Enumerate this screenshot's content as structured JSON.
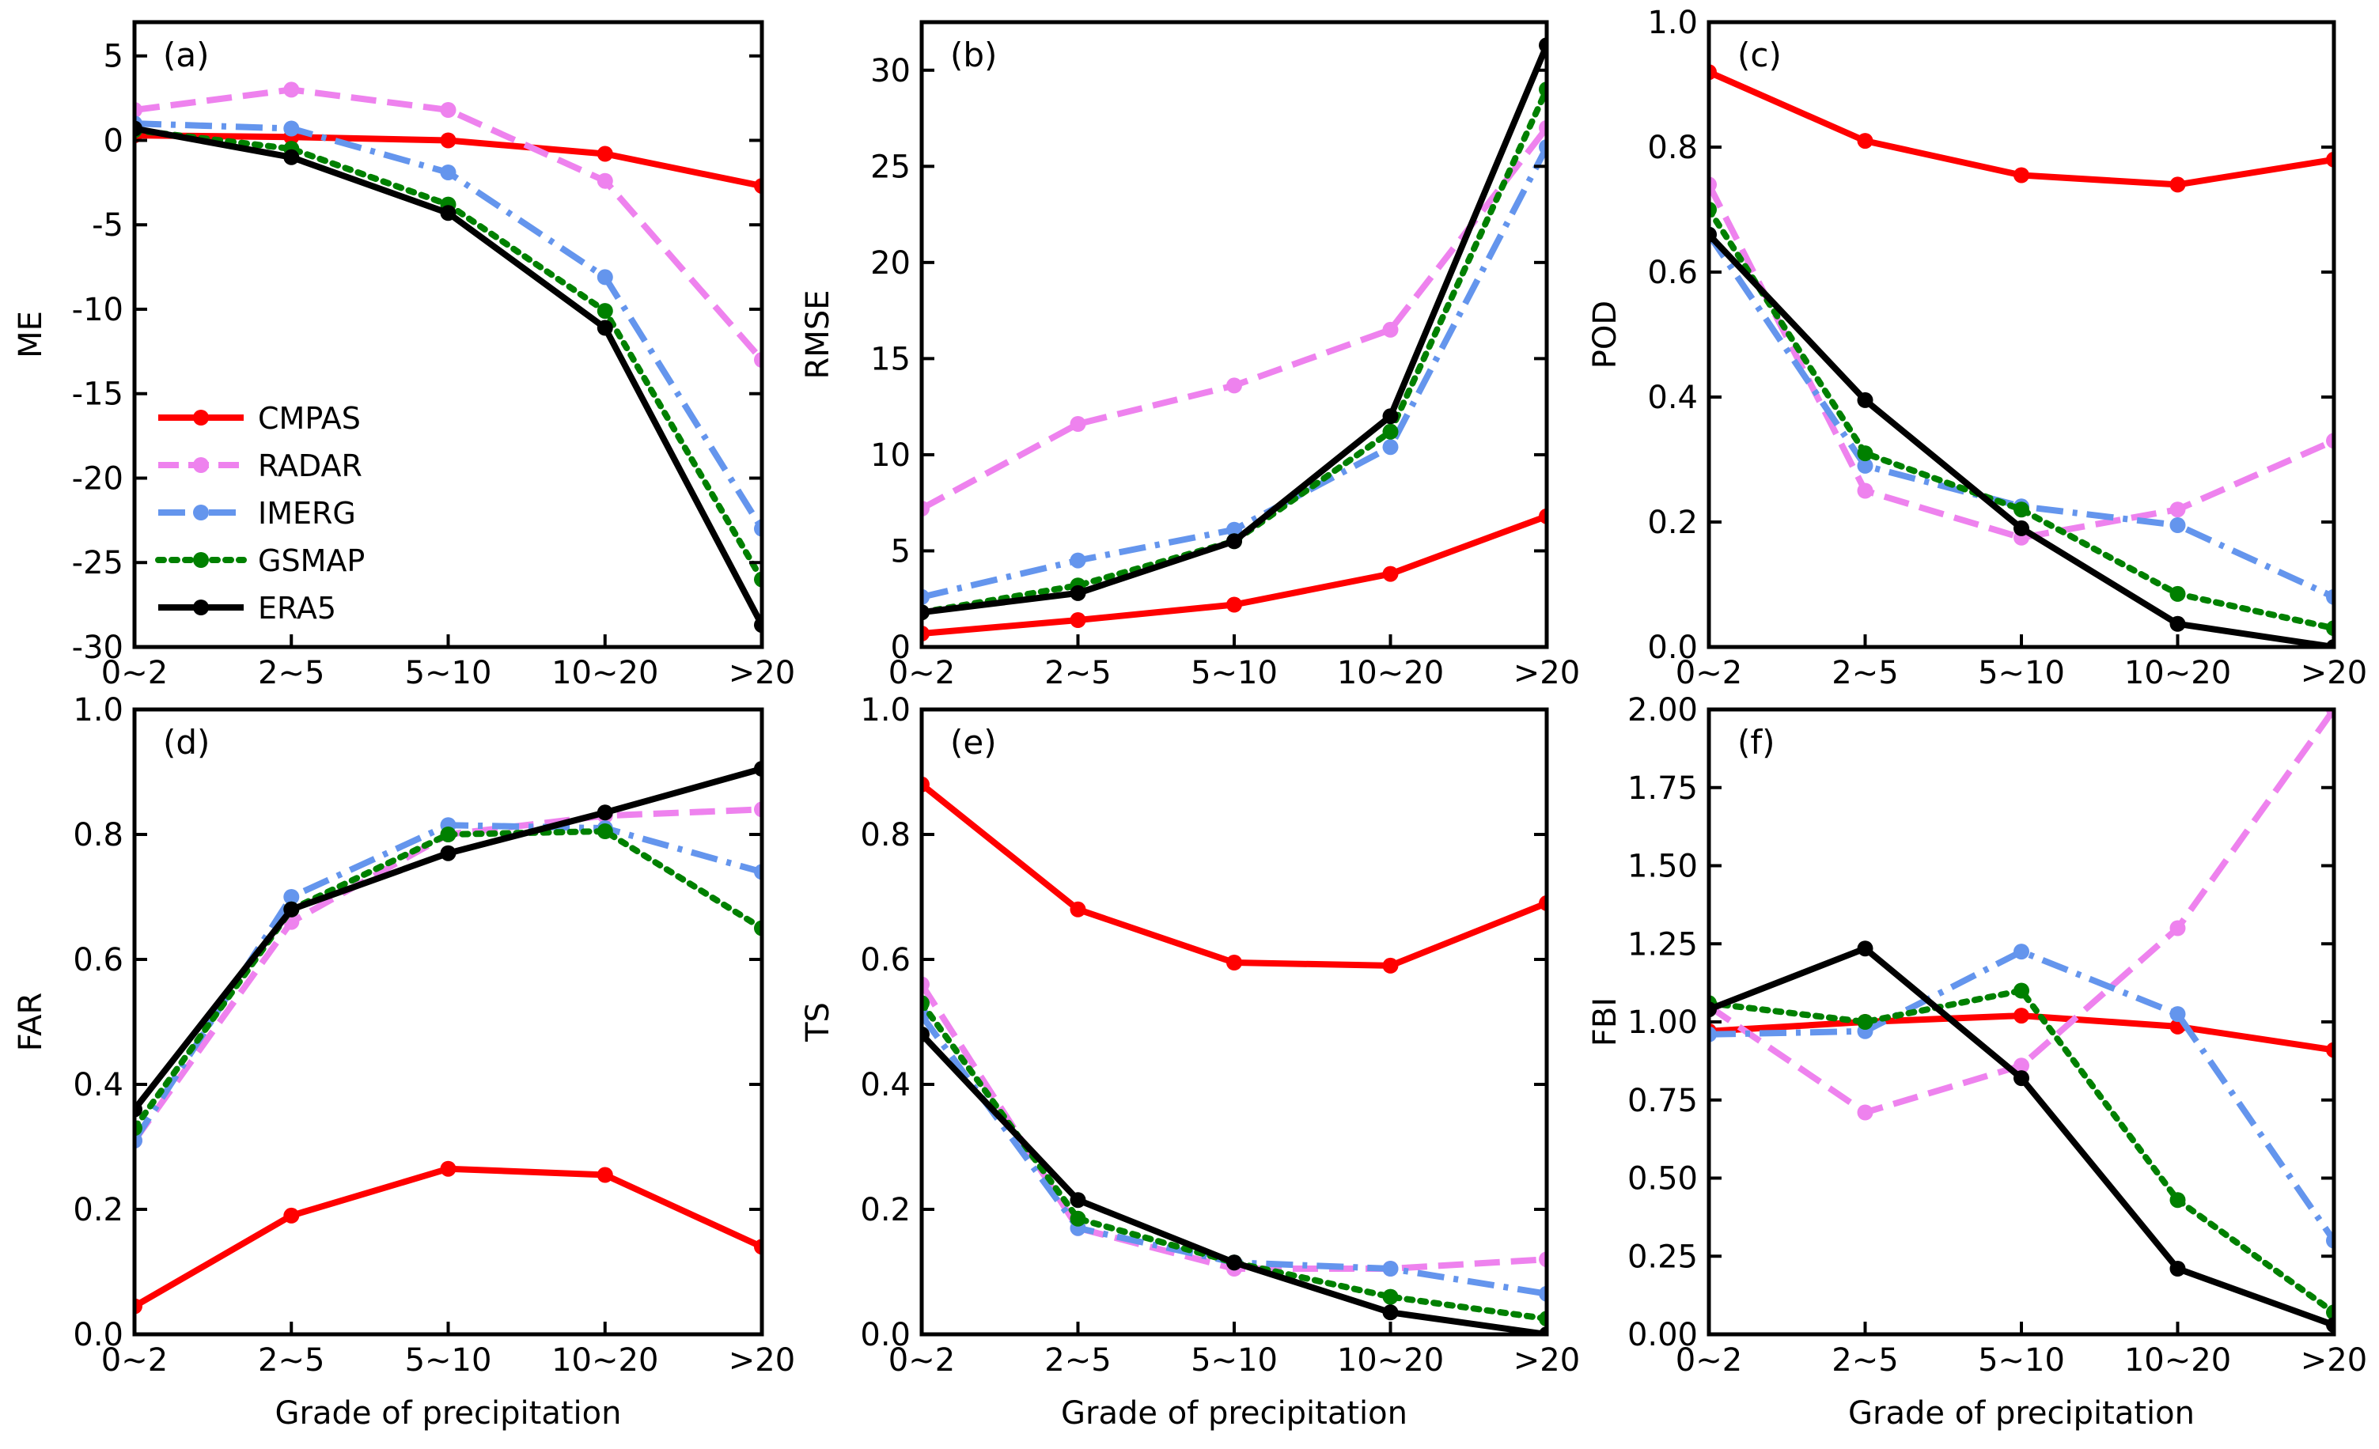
{
  "figure": {
    "xlabel": "Grade of precipitation",
    "legend_location": "left-middle of panel (a)"
  },
  "series_styles": [
    {
      "name": "CMPAS",
      "color": "#ff0000",
      "dash": "solid"
    },
    {
      "name": "RADAR",
      "color": "#ee82ee",
      "dash": "dashed"
    },
    {
      "name": "IMERG",
      "color": "#6495ed",
      "dash": "dashdot"
    },
    {
      "name": "GSMAP",
      "color": "#008000",
      "dash": "dotted"
    },
    {
      "name": "ERA5",
      "color": "#000000",
      "dash": "solid"
    }
  ],
  "chart_data": [
    {
      "type": "line",
      "panel_label": "(a)",
      "ylabel": "ME",
      "categories": [
        "0~2",
        "2~5",
        "5~10",
        "10~20",
        ">20"
      ],
      "ylim": [
        -30,
        7
      ],
      "yticks": [
        5,
        0,
        -5,
        -10,
        -15,
        -20,
        -25,
        -30
      ],
      "ytick_labels": [
        "5",
        "0",
        "-5",
        "-10",
        "-15",
        "-20",
        "-25",
        "-30"
      ],
      "show_legend": true,
      "series": [
        {
          "name": "CMPAS",
          "values": [
            0.3,
            0.2,
            0.0,
            -0.8,
            -2.7
          ]
        },
        {
          "name": "RADAR",
          "values": [
            1.8,
            3.0,
            1.8,
            -2.4,
            -13.0
          ]
        },
        {
          "name": "IMERG",
          "values": [
            1.0,
            0.7,
            -1.9,
            -8.1,
            -23.0
          ]
        },
        {
          "name": "GSMAP",
          "values": [
            0.6,
            -0.5,
            -3.8,
            -10.1,
            -26.0
          ]
        },
        {
          "name": "ERA5",
          "values": [
            0.7,
            -1.0,
            -4.3,
            -11.1,
            -28.7
          ]
        }
      ]
    },
    {
      "type": "line",
      "panel_label": "(b)",
      "ylabel": "RMSE",
      "categories": [
        "0~2",
        "2~5",
        "5~10",
        "10~20",
        ">20"
      ],
      "ylim": [
        0,
        32.5
      ],
      "yticks": [
        0,
        5,
        10,
        15,
        20,
        25,
        30
      ],
      "ytick_labels": [
        "0",
        "5",
        "10",
        "15",
        "20",
        "25",
        "30"
      ],
      "show_legend": false,
      "series": [
        {
          "name": "CMPAS",
          "values": [
            0.7,
            1.4,
            2.2,
            3.8,
            6.8
          ]
        },
        {
          "name": "RADAR",
          "values": [
            7.2,
            11.6,
            13.6,
            16.5,
            27.0
          ]
        },
        {
          "name": "IMERG",
          "values": [
            2.6,
            4.5,
            6.1,
            10.4,
            26.0
          ]
        },
        {
          "name": "GSMAP",
          "values": [
            1.8,
            3.2,
            5.5,
            11.2,
            29.0
          ]
        },
        {
          "name": "ERA5",
          "values": [
            1.8,
            2.8,
            5.5,
            12.0,
            31.3
          ]
        }
      ]
    },
    {
      "type": "line",
      "panel_label": "(c)",
      "ylabel": "POD",
      "categories": [
        "0~2",
        "2~5",
        "5~10",
        "10~20",
        ">20"
      ],
      "ylim": [
        0,
        1.0
      ],
      "yticks": [
        0,
        0.2,
        0.4,
        0.6,
        0.8,
        1.0
      ],
      "ytick_labels": [
        "0.0",
        "0.2",
        "0.4",
        "0.6",
        "0.8",
        "1.0"
      ],
      "show_legend": false,
      "series": [
        {
          "name": "CMPAS",
          "values": [
            0.92,
            0.81,
            0.755,
            0.74,
            0.78
          ]
        },
        {
          "name": "RADAR",
          "values": [
            0.74,
            0.25,
            0.175,
            0.22,
            0.33
          ]
        },
        {
          "name": "IMERG",
          "values": [
            0.66,
            0.29,
            0.225,
            0.195,
            0.08
          ]
        },
        {
          "name": "GSMAP",
          "values": [
            0.7,
            0.31,
            0.22,
            0.085,
            0.03
          ]
        },
        {
          "name": "ERA5",
          "values": [
            0.66,
            0.395,
            0.19,
            0.037,
            0.0
          ]
        }
      ]
    },
    {
      "type": "line",
      "panel_label": "(d)",
      "ylabel": "FAR",
      "categories": [
        "0~2",
        "2~5",
        "5~10",
        "10~20",
        ">20"
      ],
      "ylim": [
        0,
        1.0
      ],
      "yticks": [
        0,
        0.2,
        0.4,
        0.6,
        0.8,
        1.0
      ],
      "ytick_labels": [
        "0.0",
        "0.2",
        "0.4",
        "0.6",
        "0.8",
        "1.0"
      ],
      "show_legend": false,
      "series": [
        {
          "name": "CMPAS",
          "values": [
            0.045,
            0.19,
            0.265,
            0.255,
            0.14
          ]
        },
        {
          "name": "RADAR",
          "values": [
            0.31,
            0.66,
            0.8,
            0.83,
            0.84
          ]
        },
        {
          "name": "IMERG",
          "values": [
            0.31,
            0.7,
            0.815,
            0.81,
            0.74
          ]
        },
        {
          "name": "GSMAP",
          "values": [
            0.33,
            0.68,
            0.8,
            0.805,
            0.65
          ]
        },
        {
          "name": "ERA5",
          "values": [
            0.36,
            0.68,
            0.77,
            0.835,
            0.905
          ]
        }
      ]
    },
    {
      "type": "line",
      "panel_label": "(e)",
      "ylabel": "TS",
      "categories": [
        "0~2",
        "2~5",
        "5~10",
        "10~20",
        ">20"
      ],
      "ylim": [
        0,
        1.0
      ],
      "yticks": [
        0,
        0.2,
        0.4,
        0.6,
        0.8,
        1.0
      ],
      "ytick_labels": [
        "0.0",
        "0.2",
        "0.4",
        "0.6",
        "0.8",
        "1.0"
      ],
      "show_legend": false,
      "series": [
        {
          "name": "CMPAS",
          "values": [
            0.88,
            0.68,
            0.595,
            0.59,
            0.69
          ]
        },
        {
          "name": "RADAR",
          "values": [
            0.56,
            0.17,
            0.105,
            0.105,
            0.12
          ]
        },
        {
          "name": "IMERG",
          "values": [
            0.51,
            0.17,
            0.115,
            0.105,
            0.065
          ]
        },
        {
          "name": "GSMAP",
          "values": [
            0.53,
            0.185,
            0.115,
            0.06,
            0.025
          ]
        },
        {
          "name": "ERA5",
          "values": [
            0.48,
            0.215,
            0.115,
            0.035,
            0.0
          ]
        }
      ]
    },
    {
      "type": "line",
      "panel_label": "(f)",
      "ylabel": "FBI",
      "categories": [
        "0~2",
        "2~5",
        "5~10",
        "10~20",
        ">20"
      ],
      "ylim": [
        0,
        2.0
      ],
      "yticks": [
        0,
        0.25,
        0.5,
        0.75,
        1.0,
        1.25,
        1.5,
        1.75,
        2.0
      ],
      "ytick_labels": [
        "0.00",
        "0.25",
        "0.50",
        "0.75",
        "1.00",
        "1.25",
        "1.50",
        "1.75",
        "2.00"
      ],
      "show_legend": false,
      "series": [
        {
          "name": "CMPAS",
          "values": [
            0.97,
            1.0,
            1.02,
            0.985,
            0.91
          ]
        },
        {
          "name": "RADAR",
          "values": [
            1.05,
            0.71,
            0.86,
            1.3,
            2.0
          ]
        },
        {
          "name": "IMERG",
          "values": [
            0.96,
            0.97,
            1.225,
            1.025,
            0.3
          ]
        },
        {
          "name": "GSMAP",
          "values": [
            1.06,
            1.0,
            1.1,
            0.43,
            0.07
          ]
        },
        {
          "name": "ERA5",
          "values": [
            1.04,
            1.235,
            0.82,
            0.21,
            0.03
          ]
        }
      ]
    }
  ]
}
